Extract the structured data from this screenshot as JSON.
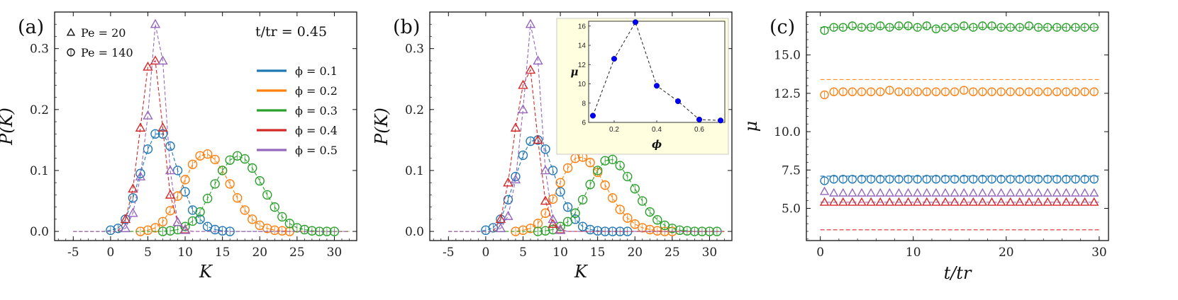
{
  "colors": {
    "phi_0.1": "#1f77b4",
    "phi_0.2": "#ff7f0e",
    "phi_0.3": "#2ca02c",
    "phi_0.4": "#d62728",
    "phi_0.5": "#9467bd",
    "inset_bg": "#ffffe0",
    "inset_marker": "#0000ff"
  },
  "marker_legend": [
    {
      "symbol": "triangle",
      "label": "Pe = 20"
    },
    {
      "symbol": "circle",
      "label": "Pe = 140"
    }
  ],
  "color_legend": [
    {
      "key": "phi_0.1",
      "label": "ϕ = 0.1"
    },
    {
      "key": "phi_0.2",
      "label": "ϕ = 0.2"
    },
    {
      "key": "phi_0.3",
      "label": "ϕ = 0.3"
    },
    {
      "key": "phi_0.4",
      "label": "ϕ = 0.4"
    },
    {
      "key": "phi_0.5",
      "label": "ϕ = 0.5"
    }
  ],
  "annotation_a": "t/tr = 0.45",
  "chart_data": [
    {
      "panel": "(a)",
      "type": "line",
      "xlabel": "K",
      "ylabel": "P(K)",
      "xlim": [
        -7.5,
        33
      ],
      "ylim": [
        -0.015,
        0.36
      ],
      "xticks": [
        -5,
        0,
        5,
        10,
        15,
        20,
        25,
        30
      ],
      "yticks": [
        0.0,
        0.1,
        0.2,
        0.3
      ],
      "ytick_labels": [
        "0.0",
        "0.1",
        "0.2",
        "0.3"
      ],
      "series": [
        {
          "key": "phi_0.1",
          "marker": "circle",
          "x": [
            0,
            1,
            2,
            3,
            4,
            5,
            6,
            7,
            8,
            9,
            10,
            11,
            12,
            13,
            14,
            15,
            16
          ],
          "y": [
            0.002,
            0.005,
            0.02,
            0.055,
            0.095,
            0.135,
            0.16,
            0.16,
            0.14,
            0.1,
            0.065,
            0.035,
            0.02,
            0.008,
            0.003,
            0.001,
            0.0
          ]
        },
        {
          "key": "phi_0.2",
          "marker": "circle",
          "x": [
            4,
            5,
            6,
            7,
            8,
            9,
            10,
            11,
            12,
            13,
            14,
            15,
            16,
            17,
            18,
            19,
            20,
            21,
            22,
            23,
            24
          ],
          "y": [
            0.0,
            0.002,
            0.006,
            0.016,
            0.034,
            0.058,
            0.085,
            0.11,
            0.124,
            0.127,
            0.118,
            0.1,
            0.078,
            0.055,
            0.035,
            0.02,
            0.01,
            0.005,
            0.002,
            0.001,
            0.0
          ]
        },
        {
          "key": "phi_0.3",
          "marker": "circle",
          "x": [
            7,
            8,
            9,
            10,
            11,
            12,
            13,
            14,
            15,
            16,
            17,
            18,
            19,
            20,
            21,
            22,
            23,
            24,
            25,
            26,
            27,
            28,
            29,
            30
          ],
          "y": [
            0.0,
            0.001,
            0.003,
            0.008,
            0.017,
            0.032,
            0.054,
            0.078,
            0.1,
            0.117,
            0.124,
            0.119,
            0.104,
            0.083,
            0.06,
            0.04,
            0.024,
            0.013,
            0.006,
            0.003,
            0.001,
            0.0,
            0.0,
            0.0
          ]
        },
        {
          "key": "phi_0.4",
          "marker": "triangle",
          "x": [
            2,
            3,
            4,
            5,
            6,
            7,
            8,
            9,
            10
          ],
          "y": [
            0.02,
            0.07,
            0.17,
            0.27,
            0.28,
            0.17,
            0.06,
            0.015,
            0.003
          ]
        },
        {
          "key": "phi_0.5",
          "marker": "triangle",
          "x": [
            2,
            3,
            4,
            5,
            6,
            7,
            8,
            9,
            10
          ],
          "y": [
            0.005,
            0.03,
            0.09,
            0.19,
            0.34,
            0.28,
            0.1,
            0.015,
            0.002
          ]
        }
      ]
    },
    {
      "panel": "(b)",
      "type": "line",
      "xlabel": "K",
      "ylabel": "P(K)",
      "xlim": [
        -7.5,
        33
      ],
      "ylim": [
        -0.015,
        0.36
      ],
      "xticks": [
        -5,
        0,
        5,
        10,
        15,
        20,
        25,
        30
      ],
      "yticks": [
        0.0,
        0.1,
        0.2,
        0.3
      ],
      "ytick_labels": [
        "0.0",
        "0.1",
        "0.2",
        "0.3"
      ],
      "series": [
        {
          "key": "phi_0.1",
          "marker": "circle",
          "x": [
            0,
            1,
            2,
            3,
            4,
            5,
            6,
            7,
            8,
            9,
            10,
            11,
            12,
            13,
            14,
            15,
            16,
            17,
            18,
            19
          ],
          "y": [
            0.002,
            0.006,
            0.02,
            0.052,
            0.09,
            0.125,
            0.148,
            0.15,
            0.135,
            0.1,
            0.065,
            0.04,
            0.02,
            0.008,
            0.003,
            0.001,
            0.0,
            0.0,
            0.0,
            0.0
          ]
        },
        {
          "key": "phi_0.2",
          "marker": "circle",
          "x": [
            4,
            5,
            6,
            7,
            8,
            9,
            10,
            11,
            12,
            13,
            14,
            15,
            16,
            17,
            18,
            19,
            20,
            21,
            22,
            23,
            24,
            25
          ],
          "y": [
            0.0,
            0.002,
            0.005,
            0.013,
            0.03,
            0.053,
            0.08,
            0.104,
            0.12,
            0.122,
            0.113,
            0.097,
            0.076,
            0.055,
            0.036,
            0.022,
            0.012,
            0.006,
            0.003,
            0.001,
            0.0,
            0.0
          ]
        },
        {
          "key": "phi_0.3",
          "marker": "circle",
          "x": [
            7,
            8,
            9,
            10,
            11,
            12,
            13,
            14,
            15,
            16,
            17,
            18,
            19,
            20,
            21,
            22,
            23,
            24,
            25,
            26,
            27,
            28,
            29,
            30,
            31
          ],
          "y": [
            0.0,
            0.001,
            0.003,
            0.008,
            0.016,
            0.03,
            0.052,
            0.077,
            0.1,
            0.116,
            0.118,
            0.108,
            0.09,
            0.07,
            0.05,
            0.032,
            0.019,
            0.01,
            0.005,
            0.002,
            0.001,
            0.0,
            0.0,
            0.0,
            0.0
          ]
        },
        {
          "key": "phi_0.4",
          "marker": "triangle",
          "x": [
            2,
            3,
            4,
            5,
            6,
            7,
            8,
            9,
            10
          ],
          "y": [
            0.02,
            0.08,
            0.17,
            0.24,
            0.265,
            0.15,
            0.05,
            0.012,
            0.003
          ]
        },
        {
          "key": "phi_0.5",
          "marker": "triangle",
          "x": [
            2,
            3,
            4,
            5,
            6,
            7,
            8,
            9,
            10
          ],
          "y": [
            0.005,
            0.025,
            0.085,
            0.2,
            0.34,
            0.28,
            0.1,
            0.02,
            0.002
          ]
        }
      ],
      "inset": {
        "type": "line",
        "xlabel": "ϕ",
        "ylabel": "μ",
        "xlim": [
          0.08,
          0.72
        ],
        "ylim": [
          6,
          16.5
        ],
        "xticks": [
          0.2,
          0.4,
          0.6
        ],
        "yticks": [
          6,
          8,
          10,
          12,
          14,
          16
        ],
        "x": [
          0.1,
          0.2,
          0.3,
          0.4,
          0.5,
          0.6,
          0.7
        ],
        "y": [
          6.7,
          12.6,
          16.4,
          9.8,
          8.2,
          6.3,
          6.2
        ]
      }
    },
    {
      "panel": "(c)",
      "type": "scatter",
      "xlabel": "t/tr",
      "ylabel": "μ",
      "xlim": [
        -1.5,
        31
      ],
      "ylim": [
        2.9,
        17.8
      ],
      "xticks": [
        0,
        10,
        20,
        30
      ],
      "yticks": [
        5.0,
        7.5,
        10.0,
        12.5,
        15.0
      ],
      "ytick_labels": [
        "5.0",
        "7.5",
        "10.0",
        "12.5",
        "15.0"
      ],
      "x_start": 0.45,
      "x_step": 1,
      "x_count": 30,
      "series": [
        {
          "key": "phi_0.3",
          "marker": "circle",
          "y": [
            16.6,
            16.8,
            16.8,
            16.9,
            16.8,
            16.8,
            16.9,
            16.8,
            16.9,
            16.9,
            16.8,
            16.9,
            16.7,
            16.8,
            16.8,
            16.9,
            16.8,
            16.9,
            16.9,
            16.8,
            16.8,
            16.8,
            16.9,
            16.8,
            16.8,
            16.8,
            16.8,
            16.8,
            16.8,
            16.8
          ]
        },
        {
          "key": "phi_0.2",
          "marker": "circle",
          "y": [
            12.4,
            12.6,
            12.6,
            12.6,
            12.6,
            12.6,
            12.6,
            12.7,
            12.6,
            12.6,
            12.6,
            12.6,
            12.6,
            12.6,
            12.6,
            12.7,
            12.6,
            12.6,
            12.6,
            12.6,
            12.6,
            12.6,
            12.6,
            12.6,
            12.6,
            12.6,
            12.6,
            12.6,
            12.6,
            12.6
          ]
        },
        {
          "key": "phi_0.1",
          "marker": "circle",
          "y": [
            6.8,
            6.9,
            6.9,
            6.9,
            6.9,
            6.9,
            6.9,
            6.9,
            6.9,
            6.9,
            6.9,
            6.9,
            6.9,
            6.9,
            6.9,
            6.9,
            6.9,
            6.9,
            6.9,
            6.9,
            6.9,
            6.9,
            6.9,
            6.9,
            6.9,
            6.9,
            6.9,
            6.9,
            6.9,
            6.9
          ]
        },
        {
          "key": "phi_0.5",
          "marker": "triangle",
          "y": [
            6.1,
            6.0,
            6.0,
            6.0,
            6.0,
            6.0,
            6.0,
            6.0,
            6.0,
            6.0,
            6.0,
            6.0,
            6.0,
            6.0,
            6.0,
            6.0,
            6.0,
            6.0,
            6.0,
            6.0,
            6.0,
            6.0,
            6.0,
            6.0,
            6.0,
            6.0,
            6.0,
            6.0,
            6.0,
            6.0
          ]
        },
        {
          "key": "phi_0.4",
          "marker": "triangle",
          "y": [
            5.4,
            5.4,
            5.4,
            5.4,
            5.4,
            5.4,
            5.4,
            5.4,
            5.4,
            5.4,
            5.4,
            5.4,
            5.4,
            5.4,
            5.4,
            5.4,
            5.4,
            5.4,
            5.4,
            5.4,
            5.4,
            5.4,
            5.4,
            5.4,
            5.4,
            5.4,
            5.4,
            5.4,
            5.4,
            5.4
          ]
        }
      ],
      "reference_lines": [
        {
          "key": "phi_0.3",
          "y": 16.8
        },
        {
          "key": "phi_0.2",
          "y": 13.4
        },
        {
          "key": "phi_0.1",
          "y": 7.1
        },
        {
          "key": "phi_0.5",
          "y": 5.4
        },
        {
          "key": "phi_0.4",
          "y": 3.6
        }
      ]
    }
  ]
}
